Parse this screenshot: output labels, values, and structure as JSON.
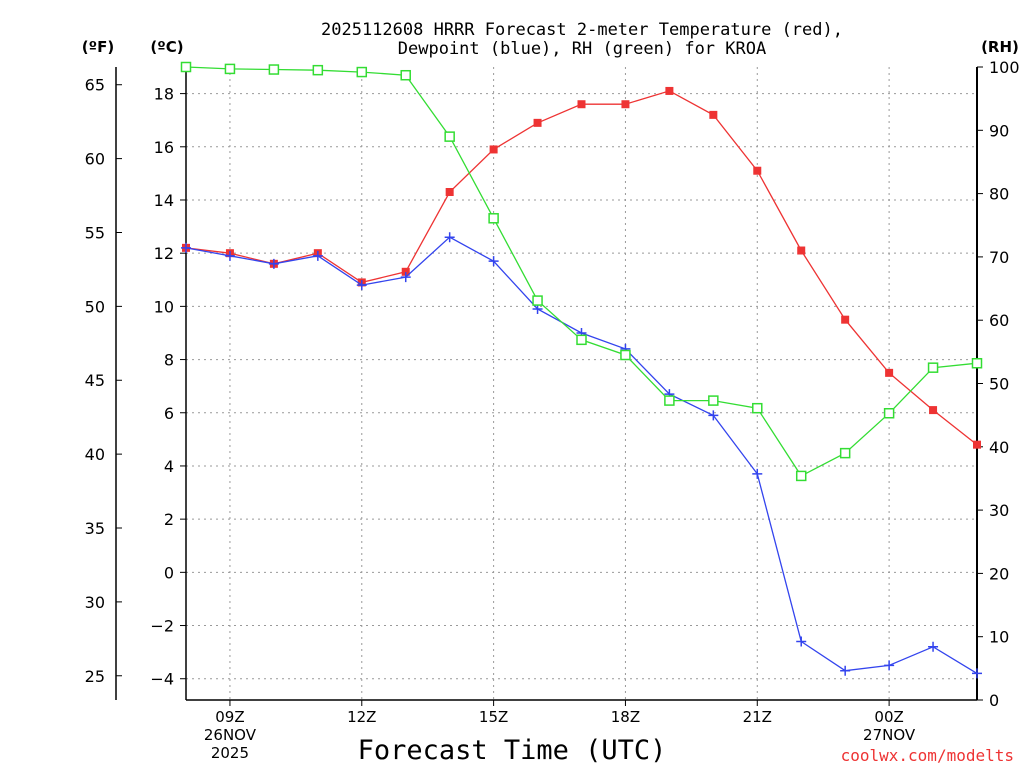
{
  "chart_data": {
    "type": "line",
    "title_line1": "2025112608 HRRR Forecast 2-meter Temperature (red),",
    "title_line2": "Dewpoint (blue), RH (green) for KROA",
    "units": {
      "f": "(ºF)",
      "c": "(ºC)",
      "rh": "(RH)"
    },
    "xlabel": "Forecast Time (UTC)",
    "credit": "coolwx.com/modelts",
    "x_hours": [
      8,
      9,
      10,
      11,
      12,
      13,
      14,
      15,
      16,
      17,
      18,
      19,
      20,
      21,
      22,
      23,
      24,
      25,
      26
    ],
    "x_ticks": [
      {
        "hour": 9,
        "lines": [
          "09Z",
          "26NOV",
          "2025"
        ]
      },
      {
        "hour": 12,
        "lines": [
          "12Z"
        ]
      },
      {
        "hour": 15,
        "lines": [
          "15Z"
        ]
      },
      {
        "hour": 18,
        "lines": [
          "18Z"
        ]
      },
      {
        "hour": 21,
        "lines": [
          "21Z"
        ]
      },
      {
        "hour": 24,
        "lines": [
          "00Z",
          "27NOV"
        ]
      }
    ],
    "xlim": [
      8,
      26
    ],
    "celsius_axis": {
      "ylim": [
        -4.8,
        19
      ],
      "ticks": [
        -4,
        -2,
        0,
        2,
        4,
        6,
        8,
        10,
        12,
        14,
        16,
        18
      ]
    },
    "fahrenheit_axis": {
      "ticks": [
        25,
        30,
        35,
        40,
        45,
        50,
        55,
        60,
        65
      ]
    },
    "rh_axis": {
      "ylim": [
        0,
        100
      ],
      "ticks": [
        0,
        10,
        20,
        30,
        40,
        50,
        60,
        70,
        80,
        90,
        100
      ]
    },
    "series": [
      {
        "name": "Temperature",
        "axis": "celsius",
        "color": "#ee3333",
        "marker": "filled-square",
        "values": [
          12.2,
          12.0,
          11.6,
          12.0,
          10.9,
          11.3,
          14.3,
          15.9,
          16.9,
          17.6,
          17.6,
          18.1,
          17.2,
          15.1,
          12.1,
          9.5,
          7.5,
          6.1,
          4.8
        ]
      },
      {
        "name": "Dewpoint",
        "axis": "celsius",
        "color": "#3344ee",
        "marker": "plus",
        "values": [
          12.2,
          11.9,
          11.6,
          11.9,
          10.8,
          11.1,
          12.6,
          11.7,
          9.9,
          9.0,
          8.4,
          6.7,
          5.9,
          3.7,
          -2.6,
          -3.7,
          -3.5,
          -2.8,
          -3.8
        ]
      },
      {
        "name": "RH",
        "axis": "rh",
        "color": "#33dd33",
        "marker": "open-square",
        "values": [
          100,
          99.7,
          99.6,
          99.5,
          99.2,
          98.7,
          89.0,
          76.1,
          63.1,
          56.9,
          54.5,
          47.3,
          47.3,
          46.1,
          35.4,
          39.0,
          45.3,
          52.5,
          53.2
        ]
      }
    ]
  }
}
